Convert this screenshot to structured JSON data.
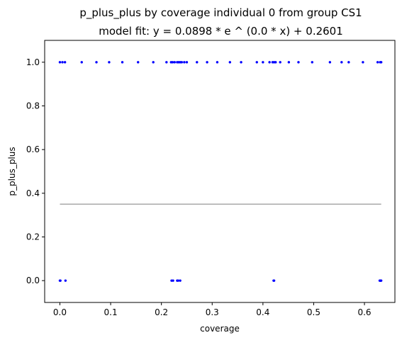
{
  "chart_data": {
    "type": "scatter",
    "title": "p_plus_plus by coverage individual 0 from group CS1",
    "subtitle": "model fit: y = 0.0898 * e ^ (0.0 * x) + 0.2601",
    "xlabel": "coverage",
    "ylabel": "p_plus_plus",
    "xlim": [
      -0.03,
      0.66
    ],
    "ylim": [
      -0.1,
      1.1
    ],
    "xticks": [
      0.0,
      0.1,
      0.2,
      0.3,
      0.4,
      0.5,
      0.6
    ],
    "xtick_labels": [
      "0.0",
      "0.1",
      "0.2",
      "0.3",
      "0.4",
      "0.5",
      "0.6"
    ],
    "yticks": [
      0.0,
      0.2,
      0.4,
      0.6,
      0.8,
      1.0
    ],
    "ytick_labels": [
      "0.0",
      "0.2",
      "0.4",
      "0.6",
      "0.8",
      "1.0"
    ],
    "grid": false,
    "colors": {
      "points": "#0000ff",
      "fit": "#aaaaaa"
    },
    "points": [
      {
        "x": 0.0,
        "y": 1
      },
      {
        "x": 0.005,
        "y": 1
      },
      {
        "x": 0.01,
        "y": 1
      },
      {
        "x": 0.043,
        "y": 1
      },
      {
        "x": 0.072,
        "y": 1
      },
      {
        "x": 0.097,
        "y": 1
      },
      {
        "x": 0.123,
        "y": 1
      },
      {
        "x": 0.154,
        "y": 1
      },
      {
        "x": 0.184,
        "y": 1
      },
      {
        "x": 0.21,
        "y": 1
      },
      {
        "x": 0.219,
        "y": 1
      },
      {
        "x": 0.222,
        "y": 1
      },
      {
        "x": 0.226,
        "y": 1
      },
      {
        "x": 0.231,
        "y": 1
      },
      {
        "x": 0.234,
        "y": 1
      },
      {
        "x": 0.237,
        "y": 1
      },
      {
        "x": 0.24,
        "y": 1
      },
      {
        "x": 0.245,
        "y": 1
      },
      {
        "x": 0.25,
        "y": 1
      },
      {
        "x": 0.27,
        "y": 1
      },
      {
        "x": 0.29,
        "y": 1
      },
      {
        "x": 0.31,
        "y": 1
      },
      {
        "x": 0.335,
        "y": 1
      },
      {
        "x": 0.357,
        "y": 1
      },
      {
        "x": 0.388,
        "y": 1
      },
      {
        "x": 0.4,
        "y": 1
      },
      {
        "x": 0.413,
        "y": 1
      },
      {
        "x": 0.419,
        "y": 1
      },
      {
        "x": 0.422,
        "y": 1
      },
      {
        "x": 0.425,
        "y": 1
      },
      {
        "x": 0.434,
        "y": 1
      },
      {
        "x": 0.451,
        "y": 1
      },
      {
        "x": 0.47,
        "y": 1
      },
      {
        "x": 0.497,
        "y": 1
      },
      {
        "x": 0.532,
        "y": 1
      },
      {
        "x": 0.555,
        "y": 1
      },
      {
        "x": 0.569,
        "y": 1
      },
      {
        "x": 0.597,
        "y": 1
      },
      {
        "x": 0.626,
        "y": 1
      },
      {
        "x": 0.631,
        "y": 1
      },
      {
        "x": 0.633,
        "y": 1
      },
      {
        "x": 0.0,
        "y": 0
      },
      {
        "x": 0.001,
        "y": 0
      },
      {
        "x": 0.011,
        "y": 0
      },
      {
        "x": 0.22,
        "y": 0
      },
      {
        "x": 0.223,
        "y": 0
      },
      {
        "x": 0.231,
        "y": 0
      },
      {
        "x": 0.233,
        "y": 0
      },
      {
        "x": 0.237,
        "y": 0
      },
      {
        "x": 0.421,
        "y": 0
      },
      {
        "x": 0.422,
        "y": 0
      },
      {
        "x": 0.63,
        "y": 0
      },
      {
        "x": 0.631,
        "y": 0
      },
      {
        "x": 0.632,
        "y": 0
      },
      {
        "x": 0.633,
        "y": 0
      }
    ],
    "fit_line": {
      "x": [
        0.0,
        0.633
      ],
      "y": [
        0.3499,
        0.3499
      ]
    }
  }
}
